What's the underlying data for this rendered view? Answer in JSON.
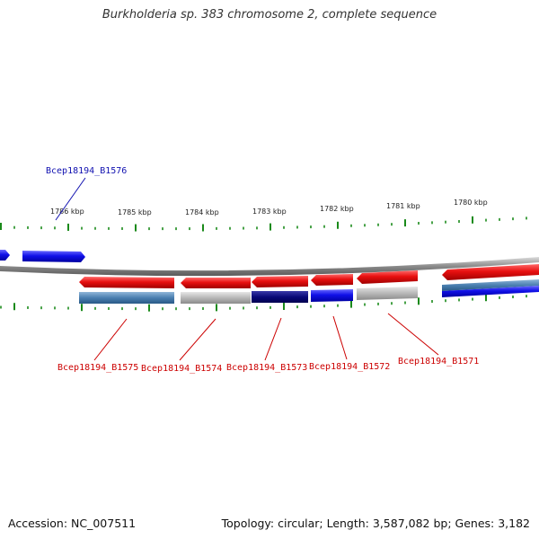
{
  "title": "Burkholderia sp. 383 chromosome 2, complete sequence",
  "footer": {
    "accession": "Accession: NC_007511",
    "summary": "Topology: circular; Length: 3,587,082 bp; Genes: 3,182"
  },
  "scale_labels": [
    "1786 kbp",
    "1785 kbp",
    "1784 kbp",
    "1783 kbp",
    "1782 kbp",
    "1781 kbp",
    "1780 kbp"
  ],
  "genes": [
    {
      "id": "Bcep18194_B1576",
      "strand": "forward",
      "color": "#1010e8"
    },
    {
      "id": "Bcep18194_B1575",
      "strand": "reverse",
      "color": "#e81010"
    },
    {
      "id": "Bcep18194_B1574",
      "strand": "reverse",
      "color": "#e81010"
    },
    {
      "id": "Bcep18194_B1573",
      "strand": "reverse",
      "color": "#e81010"
    },
    {
      "id": "Bcep18194_B1572",
      "strand": "reverse",
      "color": "#e81010"
    },
    {
      "id": "Bcep18194_B1571",
      "strand": "reverse",
      "color": "#e81010"
    }
  ],
  "colors": {
    "forward_label": "#1010b0",
    "reverse_label": "#cc0000",
    "tick": "#1a8a1a",
    "backbone": "#888888",
    "cog_steel": "#4a7fb0",
    "cog_gray": "#b8b8b8",
    "cog_navy": "#0a0a78",
    "cog_blue": "#1010e8"
  }
}
